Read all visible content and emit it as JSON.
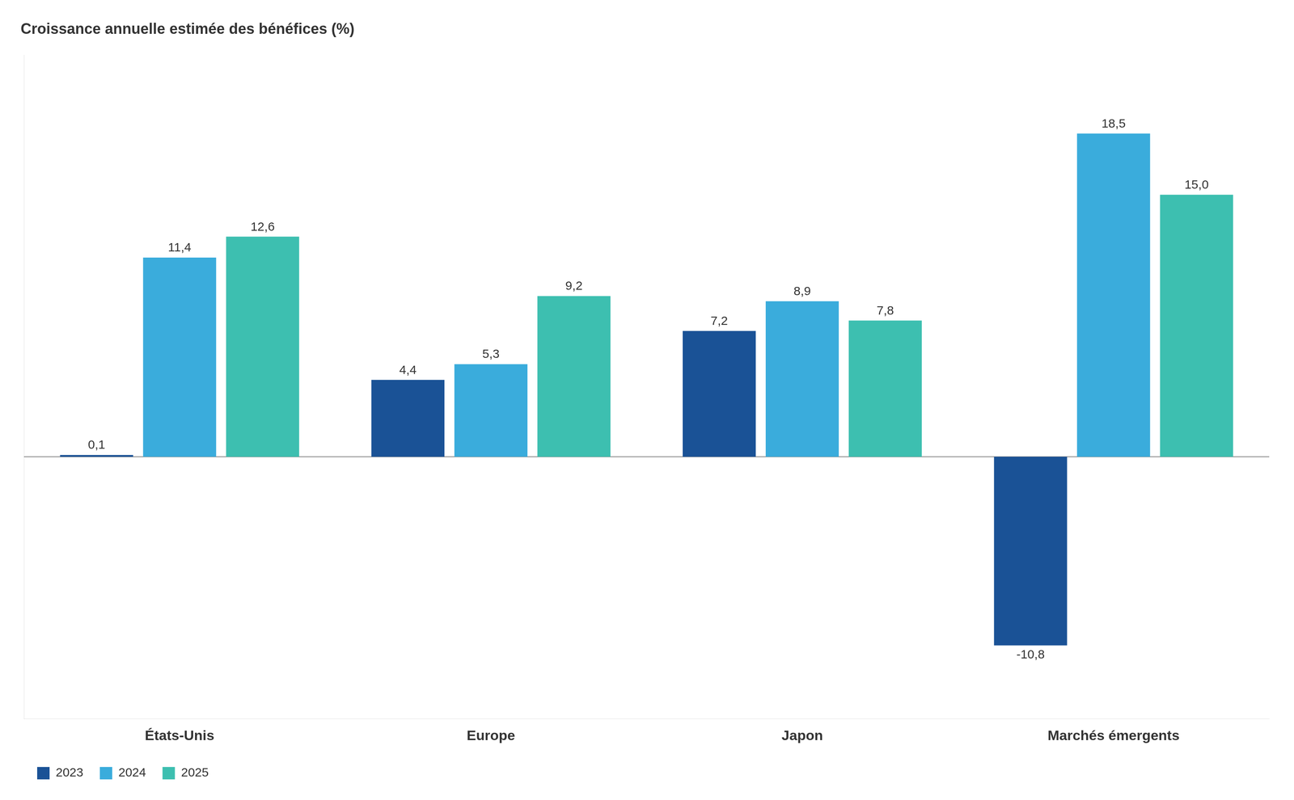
{
  "chart_data": {
    "type": "bar",
    "title": "Croissance annuelle estimée des bénéfices (%)",
    "categories": [
      "États-Unis",
      "Europe",
      "Japon",
      "Marchés émergents"
    ],
    "series": [
      {
        "name": "2023",
        "color": "#1a5296",
        "values": [
          0.1,
          4.4,
          7.2,
          -10.8
        ],
        "value_labels": [
          "0,1",
          "4,4",
          "7,2",
          "-10,8"
        ]
      },
      {
        "name": "2024",
        "color": "#3aacdc",
        "values": [
          11.4,
          5.3,
          8.9,
          18.5
        ],
        "value_labels": [
          "11,4",
          "5,3",
          "8,9",
          "18,5"
        ]
      },
      {
        "name": "2025",
        "color": "#3dbfb0",
        "values": [
          12.6,
          9.2,
          7.8,
          15.0
        ],
        "value_labels": [
          "12,6",
          "9,2",
          "7,8",
          "15,0"
        ]
      }
    ],
    "ylim": [
      -15,
      23
    ],
    "grid": false,
    "legend": "lower left",
    "data_labels": true,
    "tick_labels": "x"
  }
}
